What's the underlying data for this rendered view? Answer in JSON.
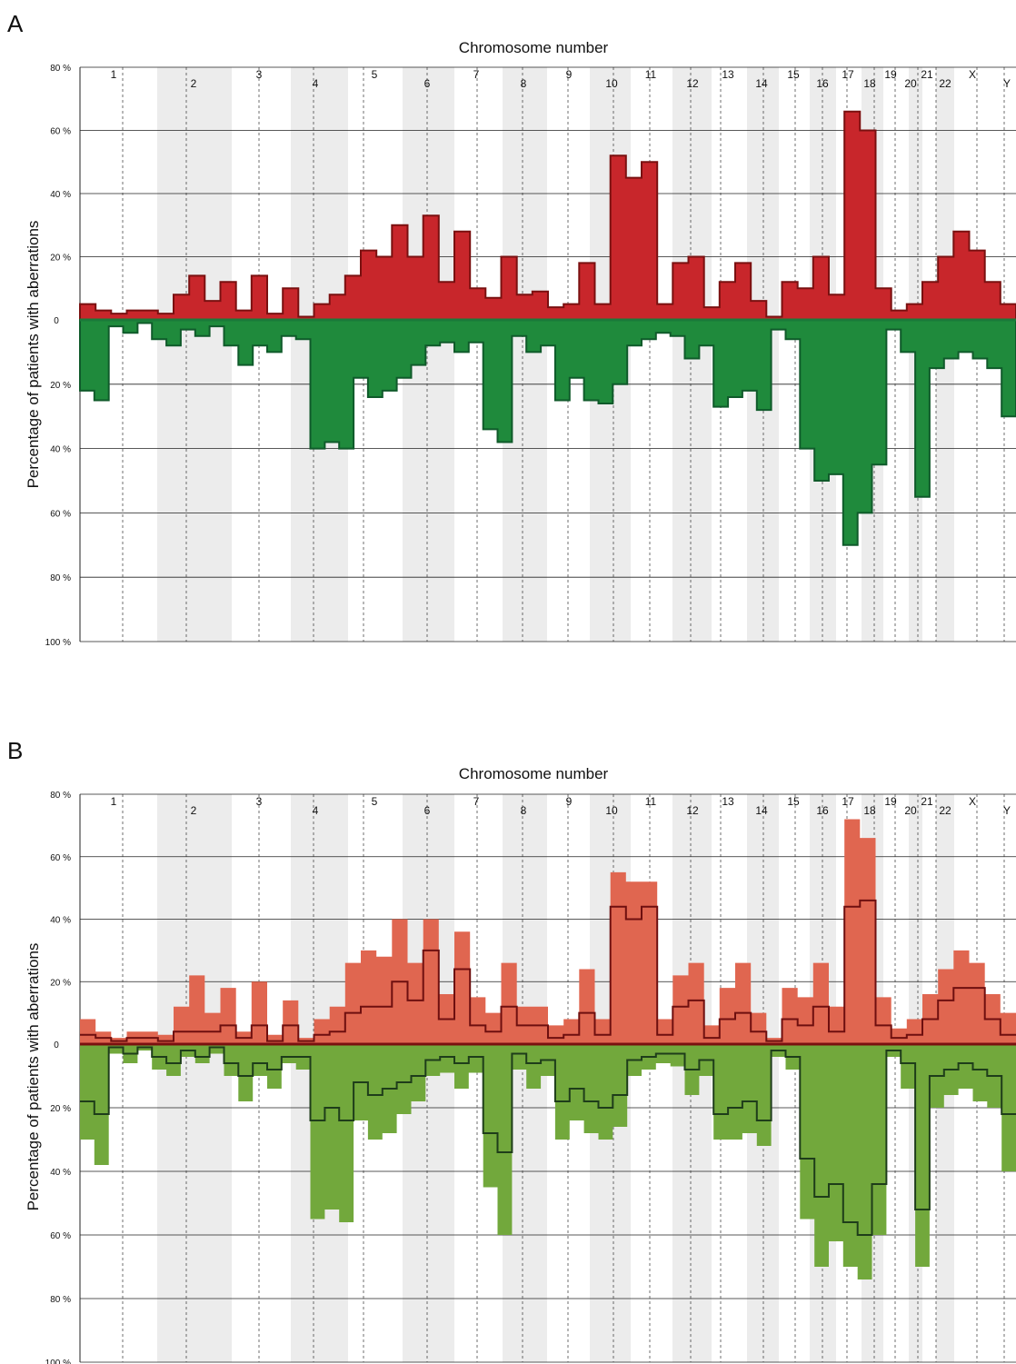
{
  "chart_data": [
    {
      "panel": "A",
      "type": "area",
      "title": "Chromosome number",
      "ylabel": "Percentage of patients with aberrations",
      "ylim_gain": [
        0,
        80
      ],
      "ylim_loss": [
        0,
        100
      ],
      "y_ticks_gain": [
        "80 %",
        "60 %",
        "40 %",
        "20 %"
      ],
      "y_ticks_loss": [
        "0",
        "20 %",
        "40 %",
        "60 %",
        "80 %",
        "100 %"
      ],
      "chromosomes": [
        "1",
        "2",
        "3",
        "4",
        "5",
        "6",
        "7",
        "8",
        "9",
        "10",
        "11",
        "12",
        "13",
        "14",
        "15",
        "16",
        "17",
        "18",
        "19",
        "20",
        "21",
        "22",
        "X",
        "Y"
      ],
      "grid": true,
      "colors": {
        "gain_fill": "#c8262b",
        "gain_line": "#7a1010",
        "loss_fill": "#1f8a3c",
        "loss_line": "#0f5a2a"
      },
      "series": [
        {
          "name": "gain",
          "values": [
            5,
            3,
            2,
            3,
            3,
            2,
            8,
            14,
            6,
            12,
            3,
            14,
            2,
            10,
            1,
            5,
            8,
            14,
            22,
            20,
            30,
            20,
            33,
            12,
            28,
            10,
            7,
            20,
            8,
            9,
            4,
            5,
            18,
            5,
            52,
            45,
            50,
            5,
            18,
            20,
            4,
            12,
            18,
            6,
            1,
            12,
            10,
            20,
            8,
            66,
            60,
            10,
            3,
            5,
            12,
            20,
            28,
            22,
            12,
            5
          ]
        },
        {
          "name": "loss",
          "values": [
            22,
            25,
            2,
            4,
            1,
            6,
            8,
            3,
            5,
            2,
            8,
            14,
            8,
            10,
            5,
            6,
            40,
            38,
            40,
            18,
            24,
            22,
            18,
            14,
            8,
            7,
            10,
            7,
            34,
            38,
            5,
            10,
            8,
            25,
            18,
            25,
            26,
            20,
            8,
            6,
            4,
            5,
            12,
            8,
            27,
            24,
            22,
            28,
            3,
            6,
            40,
            50,
            48,
            70,
            60,
            45,
            3,
            10,
            55,
            15,
            12,
            10,
            12,
            15,
            30
          ]
        }
      ]
    },
    {
      "panel": "B",
      "type": "area",
      "title": "Chromosome number",
      "ylabel": "Percentage of patients with aberrations",
      "ylim_gain": [
        0,
        80
      ],
      "ylim_loss": [
        0,
        100
      ],
      "y_ticks_gain": [
        "80 %",
        "60 %",
        "40 %",
        "20 %"
      ],
      "y_ticks_loss": [
        "0",
        "20 %",
        "40 %",
        "60 %",
        "80 %",
        "100 %"
      ],
      "chromosomes": [
        "1",
        "2",
        "3",
        "4",
        "5",
        "6",
        "7",
        "8",
        "9",
        "10",
        "11",
        "12",
        "13",
        "14",
        "15",
        "16",
        "17",
        "18",
        "19",
        "20",
        "21",
        "22",
        "X",
        "Y"
      ],
      "grid": true,
      "colors": {
        "gain_fill": "#e06650",
        "gain_line": "#6e0f0f",
        "loss_fill": "#72a83c",
        "loss_line": "#1e3d1a"
      },
      "series": [
        {
          "name": "gain",
          "values": [
            8,
            4,
            2,
            4,
            4,
            3,
            12,
            22,
            10,
            18,
            4,
            20,
            3,
            14,
            2,
            8,
            12,
            26,
            30,
            28,
            40,
            26,
            40,
            16,
            36,
            15,
            10,
            26,
            12,
            12,
            6,
            8,
            24,
            8,
            55,
            52,
            52,
            8,
            22,
            26,
            6,
            18,
            26,
            10,
            2,
            18,
            15,
            26,
            12,
            72,
            66,
            15,
            5,
            8,
            16,
            24,
            30,
            26,
            16,
            10
          ]
        },
        {
          "name": "gain-line",
          "values": [
            3,
            2,
            1,
            2,
            2,
            1,
            4,
            4,
            4,
            6,
            2,
            6,
            1,
            6,
            1,
            3,
            4,
            10,
            12,
            12,
            20,
            14,
            30,
            8,
            24,
            6,
            4,
            12,
            6,
            6,
            2,
            3,
            10,
            3,
            44,
            40,
            44,
            3,
            12,
            14,
            2,
            8,
            10,
            4,
            1,
            8,
            6,
            12,
            4,
            44,
            46,
            6,
            2,
            3,
            8,
            14,
            18,
            18,
            8,
            3
          ]
        },
        {
          "name": "loss",
          "values": [
            30,
            38,
            3,
            6,
            2,
            8,
            10,
            4,
            6,
            3,
            10,
            18,
            10,
            14,
            6,
            8,
            55,
            52,
            56,
            24,
            30,
            28,
            22,
            18,
            10,
            9,
            14,
            9,
            45,
            60,
            8,
            14,
            10,
            30,
            24,
            28,
            30,
            26,
            10,
            8,
            6,
            7,
            16,
            10,
            30,
            30,
            28,
            32,
            4,
            8,
            55,
            70,
            62,
            70,
            74,
            60,
            4,
            14,
            70,
            20,
            16,
            14,
            18,
            20,
            40
          ]
        },
        {
          "name": "loss-line",
          "values": [
            18,
            22,
            1,
            3,
            1,
            4,
            6,
            2,
            4,
            1,
            6,
            10,
            6,
            8,
            4,
            4,
            24,
            20,
            24,
            12,
            16,
            14,
            12,
            10,
            5,
            4,
            6,
            4,
            28,
            34,
            3,
            6,
            5,
            18,
            14,
            18,
            20,
            16,
            5,
            4,
            3,
            3,
            8,
            5,
            22,
            20,
            18,
            24,
            2,
            4,
            36,
            48,
            44,
            56,
            60,
            44,
            2,
            6,
            52,
            10,
            8,
            6,
            8,
            10,
            22
          ]
        }
      ]
    }
  ],
  "panels": [
    {
      "letter": "A",
      "title": "Chromosome number",
      "ylabel": "Percentage of patients with aberrations"
    },
    {
      "letter": "B",
      "title": "Chromosome number",
      "ylabel": "Percentage of patients with aberrations"
    }
  ]
}
